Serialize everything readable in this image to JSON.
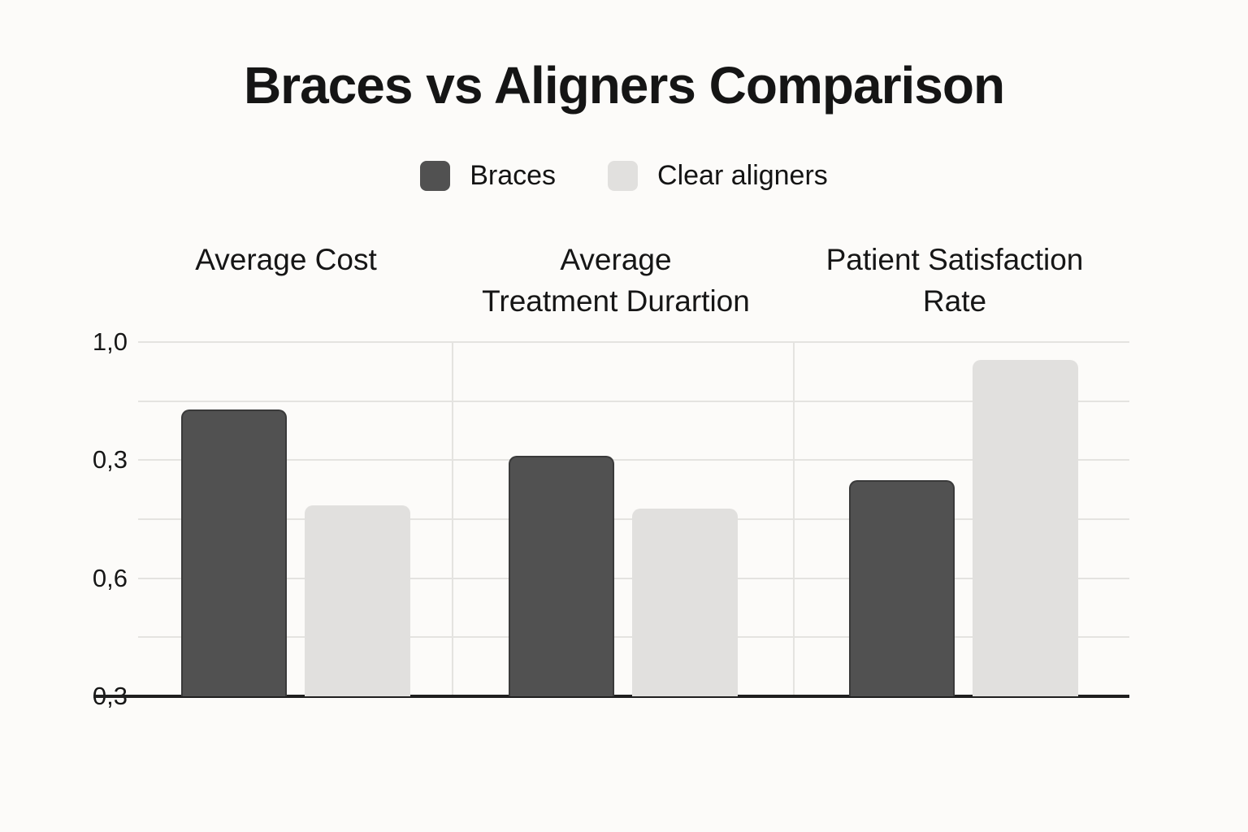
{
  "title": "Braces vs Aligners Comparison",
  "legend": {
    "items": [
      {
        "label": "Braces",
        "color": "#515151"
      },
      {
        "label": "Clear aligners",
        "color": "#e1e0de"
      }
    ]
  },
  "chart_data": {
    "type": "bar",
    "title": "Braces vs Aligners Comparison",
    "categories": [
      "Average Cost",
      "Average Treatment Durartion",
      "Patient Satisfaction Rate"
    ],
    "category_lines": [
      [
        "Average Cost"
      ],
      [
        "Average",
        "Treatment Durartion"
      ],
      [
        "Patient Satisfaction",
        "Rate"
      ]
    ],
    "series": [
      {
        "name": "Braces",
        "color": "#515151",
        "values": [
          0.81,
          0.68,
          0.61
        ]
      },
      {
        "name": "Clear aligners",
        "color": "#e1e0de",
        "values": [
          0.54,
          0.53,
          0.95
        ]
      }
    ],
    "ylim": [
      0,
      1
    ],
    "y_tick_labels_as_shown": [
      "1,0",
      "0,3",
      "0,6",
      "0,3"
    ],
    "grid": true,
    "legend_position": "top",
    "xlabel": "",
    "ylabel": ""
  },
  "colors": {
    "background": "#fcfbf9",
    "grid_line": "#e4e3e0",
    "axis_line": "#1f1f1f",
    "text": "#141414",
    "braces_bar": "#515151",
    "aligners_bar": "#e1e0de"
  }
}
